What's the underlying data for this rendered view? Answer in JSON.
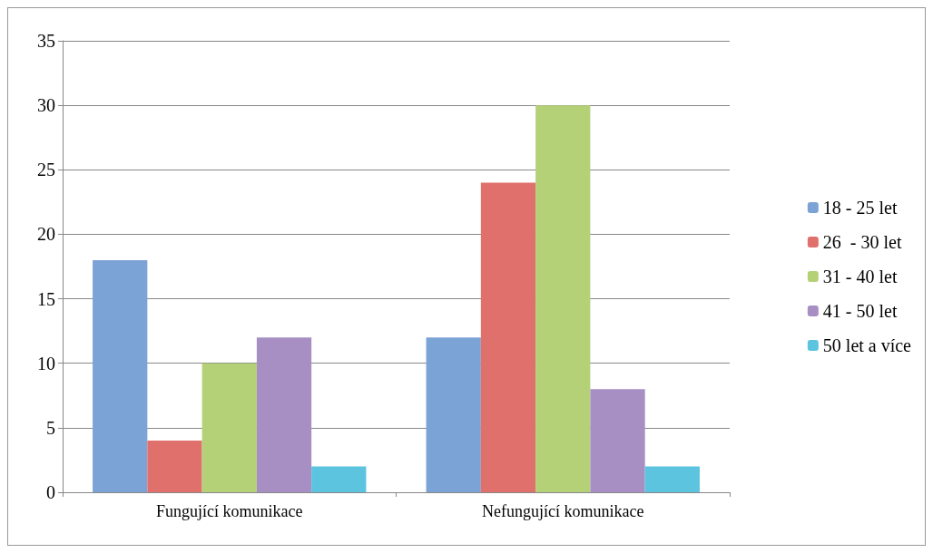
{
  "chart_data": {
    "type": "bar",
    "categories": [
      "Fungující komunikace",
      "Nefungující komunikace"
    ],
    "series": [
      {
        "name": "18 - 25 let",
        "color": "#7ba3d6",
        "values": [
          18,
          12
        ]
      },
      {
        "name": "26  - 30 let",
        "color": "#e0706c",
        "values": [
          4,
          24
        ]
      },
      {
        "name": "31 - 40 let",
        "color": "#b5d178",
        "values": [
          10,
          30
        ]
      },
      {
        "name": "41 - 50 let",
        "color": "#a78fc4",
        "values": [
          12,
          8
        ]
      },
      {
        "name": "50 let a více",
        "color": "#5cc4df",
        "values": [
          2,
          2
        ]
      }
    ],
    "ylim": [
      0,
      35
    ],
    "yticks": [
      0,
      5,
      10,
      15,
      20,
      25,
      30,
      35
    ],
    "grid": "y",
    "legend": "right"
  }
}
